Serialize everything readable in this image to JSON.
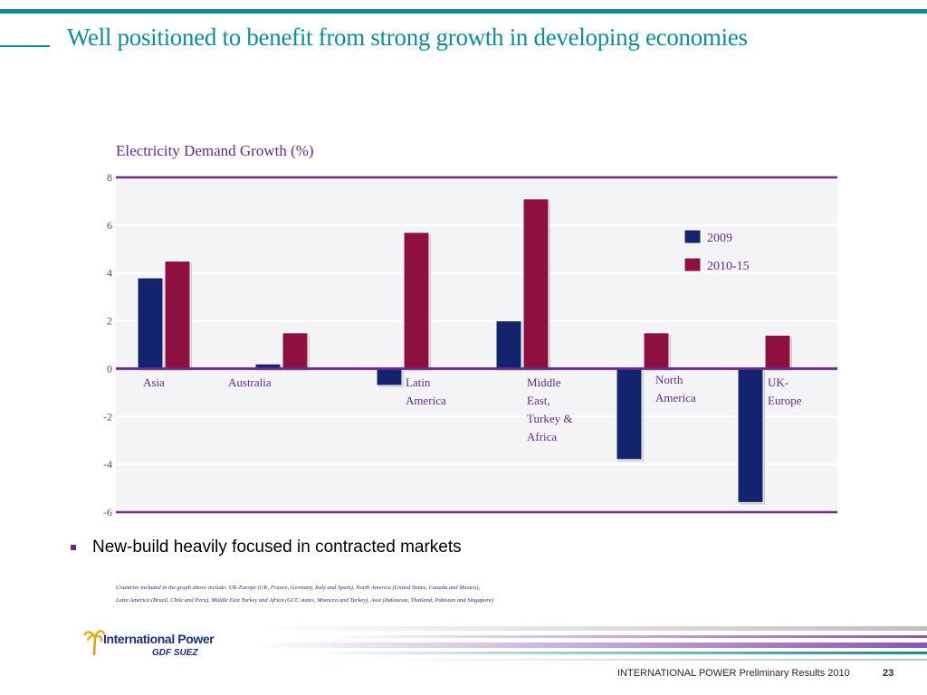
{
  "slide": {
    "title": "Well positioned to benefit from strong growth in developing economies",
    "bullet": "New-build heavily focused in contracted markets",
    "footnote_line1": "Countries included in the graph above include: UK-Europe (UK, France, Germany, Italy and Spain), North America (United States, Canada and Mexico),",
    "footnote_line2": "Latin America (Brazil, Chile and Peru), Middle East Turkey and Africa (GCC states, Morocco and Turkey), Asia (Indonesia, Thailand, Pakistan and Singapore)",
    "footer_text": "INTERNATIONAL POWER Preliminary Results 2010",
    "page_number": "23",
    "logo_text": "International Power",
    "logo_subtext": "GDF SUEZ"
  },
  "colors": {
    "accent_teal": "#0e8c9a",
    "purple": "#5b2d8e",
    "axis_line": "#6d2a8a",
    "series_2009": "#13236e",
    "series_2010_15": "#8e1040",
    "plot_background": "#f4f4f6"
  },
  "chart_data": {
    "type": "bar",
    "title": "Electricity Demand Growth (%)",
    "categories": [
      [
        "Asia"
      ],
      [
        "Australia"
      ],
      [
        "Latin",
        "America"
      ],
      [
        "Middle",
        "East,",
        "Turkey &",
        "Africa"
      ],
      [
        "North",
        "America"
      ],
      [
        "UK-",
        "Europe"
      ]
    ],
    "series": [
      {
        "name": "2009",
        "values": [
          3.8,
          0.2,
          -0.7,
          2.0,
          -3.8,
          -5.6
        ]
      },
      {
        "name": "2010-15",
        "values": [
          4.5,
          1.5,
          5.7,
          7.1,
          1.5,
          1.4
        ]
      }
    ],
    "ylim": [
      -6,
      8
    ],
    "yticks": [
      8,
      6,
      4,
      2,
      0,
      -2,
      -4,
      -6
    ],
    "grid": true,
    "legend_position": "top-right"
  }
}
